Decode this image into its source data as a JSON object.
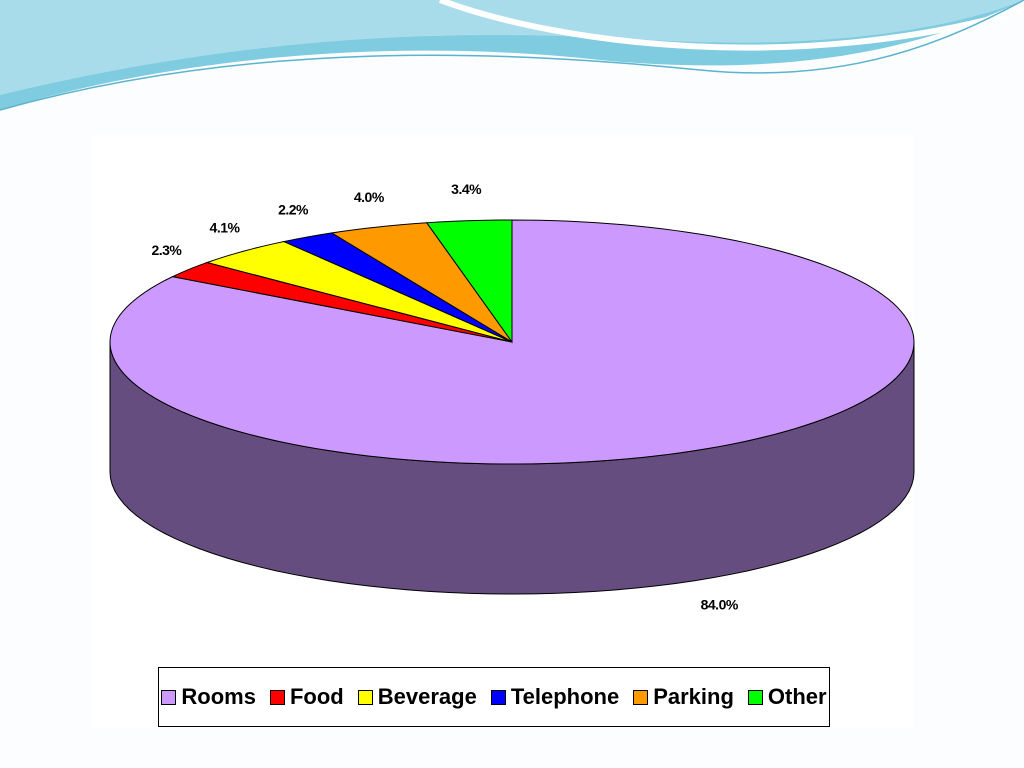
{
  "chart_data": {
    "type": "pie",
    "categories": [
      "Rooms",
      "Food",
      "Beverage",
      "Telephone",
      "Parking",
      "Other"
    ],
    "values": [
      84.0,
      2.3,
      4.1,
      2.2,
      4.0,
      3.4
    ],
    "value_labels": [
      "84.0%",
      "2.3%",
      "4.1%",
      "2.2%",
      "4.0%",
      "3.4%"
    ],
    "colors": [
      "#cc99ff",
      "#ff0000",
      "#ffff00",
      "#0000ff",
      "#ff9900",
      "#00ff00"
    ]
  }
}
